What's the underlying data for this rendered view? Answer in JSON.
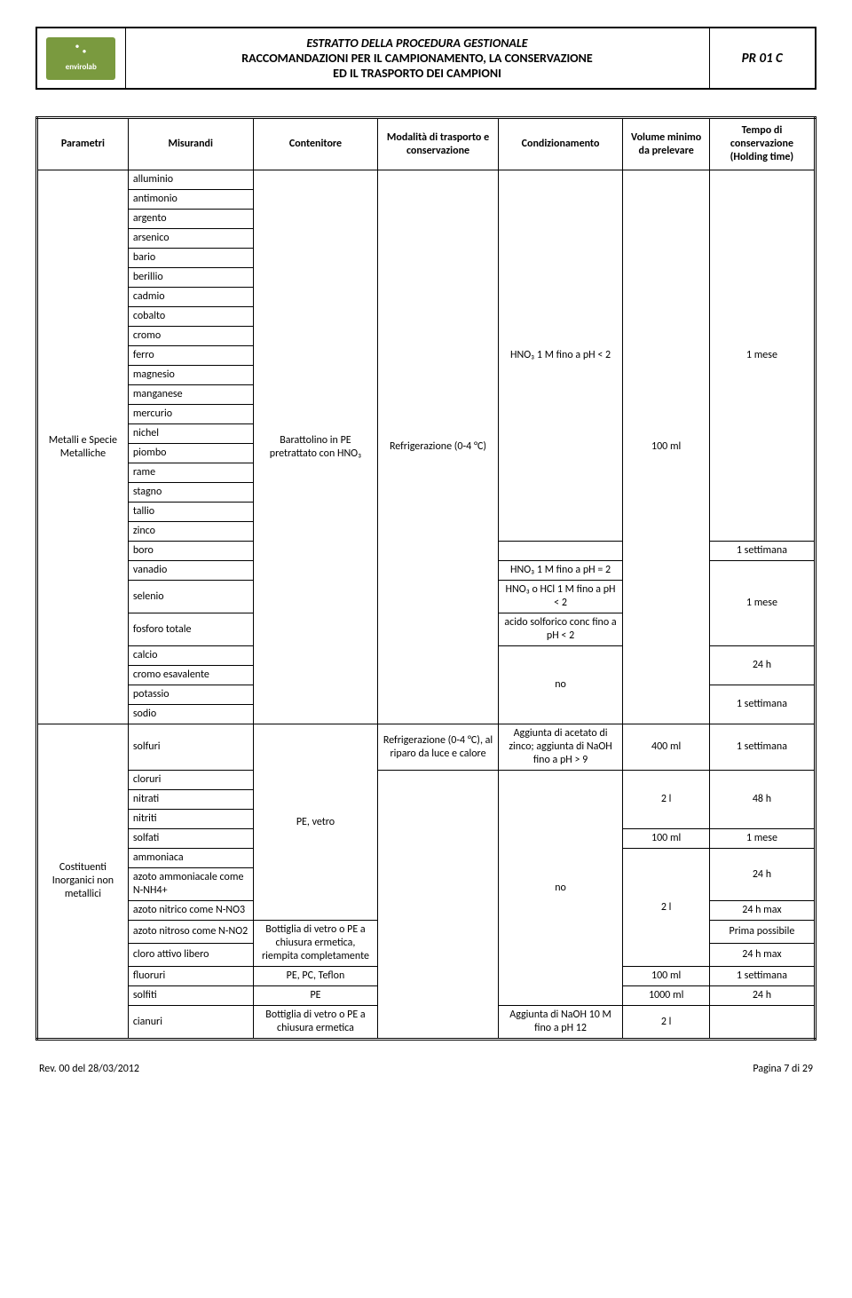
{
  "header": {
    "logo_label": "envirolab",
    "title_line1": "ESTRATTO DELLA PROCEDURA GESTIONALE",
    "title_line2": "RACCOMANDAZIONI PER IL CAMPIONAMENTO, LA CONSERVAZIONE",
    "title_line3": "ED IL TRASPORTO DEI CAMPIONI",
    "code": "PR 01 C"
  },
  "columns": {
    "c1": "Parametri",
    "c2": "Misurandi",
    "c3": "Contenitore",
    "c4": "Modalità di trasporto e conservazione",
    "c5": "Condizionamento",
    "c6": "Volume minimo da prelevare",
    "c7": "Tempo di conservazione (Holding time)"
  },
  "metalli": {
    "param": "Metalli e Specie Metalliche",
    "contenitore": "Barattolino in PE pretrattato con HNO₃",
    "modalita": "Refrigerazione (0-4 °C)",
    "cond1": "HNO₃ 1 M fino a pH < 2",
    "volume": "100 ml",
    "tempo1": "1 mese",
    "boro_tempo": "1 settimana",
    "vanadio_cond": "HNO₃ 1 M fino a pH = 2",
    "selenio_cond": "HNO₃ o HCl 1 M fino a pH < 2",
    "fosforo_cond": "acido solforico conc fino a pH < 2",
    "tempo_vsf": "1 mese",
    "cond_no": "no",
    "tempo_24h": "24 h",
    "tempo_1sett": "1 settimana",
    "items": [
      "alluminio",
      "antimonio",
      "argento",
      "arsenico",
      "bario",
      "berillio",
      "cadmio",
      "cobalto",
      "cromo",
      "ferro",
      "magnesio",
      "manganese",
      "mercurio",
      "nichel",
      "piombo",
      "rame",
      "stagno",
      "tallio",
      "zinco"
    ],
    "boro": "boro",
    "vanadio": "vanadio",
    "selenio": "selenio",
    "fosforo": "fosforo totale",
    "calcio": "calcio",
    "cromo_es": "cromo esavalente",
    "potassio": "potassio",
    "sodio": "sodio"
  },
  "inorg": {
    "param": "Costituenti Inorganici non metallici",
    "solfuri": "solfuri",
    "solfuri_cont": "PE, vetro",
    "solfuri_mod": "Refrigerazione (0-4 °C), al riparo da luce e calore",
    "solfuri_cond": "Aggiunta di acetato di zinco; aggiunta di NaOH fino a pH > 9",
    "solfuri_vol": "400 ml",
    "solfuri_tempo": "1 settimana",
    "cloruri": "cloruri",
    "nitrati": "nitrati",
    "nitriti": "nitriti",
    "solfati": "solfati",
    "ammoniaca": "ammoniaca",
    "azoto_amm": "azoto ammoniacale come N-NH4+",
    "azoto_nitrico": "azoto nitrico come N-NO3",
    "azoto_nitroso": "azoto nitroso come N-NO2",
    "cloro_attivo": "cloro attivo libero",
    "fluoruri": "fluoruri",
    "solfiti": "solfiti",
    "cianuri": "cianuri",
    "cont_pe_vetro": "PE, vetro",
    "cont_bottiglia": "Bottiglia di vetro o PE a chiusura ermetica, riempita completamente",
    "cont_pe_pc_teflon": "PE, PC, Teflon",
    "cont_pe": "PE",
    "cont_bottiglia2": "Bottiglia di vetro o PE a chiusura ermetica",
    "cond_no": "no",
    "cond_naoh": "Aggiunta di NaOH 10 M fino a pH 12",
    "vol_2l": "2 l",
    "vol_100ml": "100 ml",
    "vol_1000ml": "1000 ml",
    "tempo_48h": "48 h",
    "tempo_1mese": "1 mese",
    "tempo_24h": "24 h",
    "tempo_24hmax": "24 h max",
    "tempo_prima": "Prima possibile",
    "tempo_1sett": "1 settimana"
  },
  "footer": {
    "left": "Rev. 00 del 28/03/2012",
    "right": "Pagina 7 di 29"
  }
}
